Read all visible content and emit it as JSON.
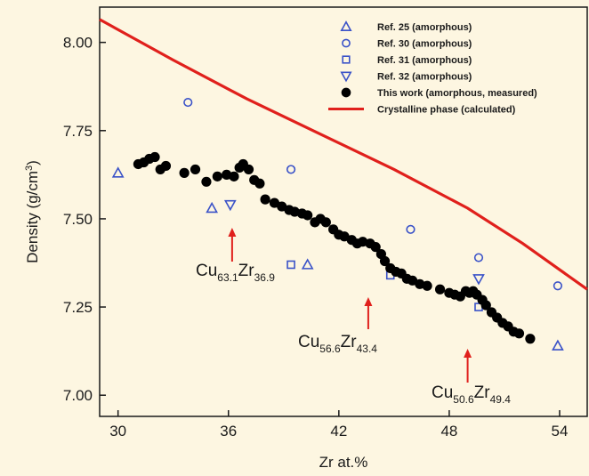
{
  "chart_data": {
    "type": "scatter",
    "xlabel": "Zr at.%",
    "ylabel": "Density (g/cm³)",
    "ylabel_base": "Density (g/cm",
    "ylabel_sup": "3",
    "ylabel_close": ")",
    "xlim": [
      29,
      55.5
    ],
    "ylim": [
      6.94,
      8.1
    ],
    "xticks": [
      30,
      36,
      42,
      48,
      54
    ],
    "xtick_labels": [
      "30",
      "36",
      "42",
      "48",
      "54"
    ],
    "yticks": [
      7.0,
      7.25,
      7.5,
      7.75,
      8.0
    ],
    "ytick_labels": [
      "7.00",
      "7.25",
      "7.50",
      "7.75",
      "8.00"
    ],
    "grid": false,
    "legend_position": "top-right",
    "colors": {
      "blue": "#3a52c8",
      "black": "#000000",
      "red": "#e0201c"
    },
    "series": [
      {
        "name": "Ref. 25 (amorphous)",
        "marker": "triangle-up",
        "color": "#3a52c8",
        "points": [
          [
            30.0,
            7.63
          ],
          [
            35.1,
            7.53
          ],
          [
            40.3,
            7.37
          ],
          [
            53.9,
            7.14
          ]
        ]
      },
      {
        "name": "Ref. 30 (amorphous)",
        "marker": "circle-open",
        "color": "#3a52c8",
        "points": [
          [
            33.8,
            7.83
          ],
          [
            39.4,
            7.64
          ],
          [
            45.9,
            7.47
          ],
          [
            49.6,
            7.39
          ],
          [
            53.9,
            7.31
          ]
        ]
      },
      {
        "name": "Ref. 31 (amorphous)",
        "marker": "square-open",
        "color": "#3a52c8",
        "points": [
          [
            39.4,
            7.37
          ],
          [
            44.8,
            7.34
          ],
          [
            49.6,
            7.25
          ]
        ]
      },
      {
        "name": "Ref. 32 (amorphous)",
        "marker": "triangle-down",
        "color": "#3a52c8",
        "points": [
          [
            36.1,
            7.54
          ],
          [
            49.6,
            7.33
          ]
        ]
      },
      {
        "name": "This work (amorphous, measured)",
        "marker": "circle-filled",
        "color": "#000000",
        "points": [
          [
            31.1,
            7.655
          ],
          [
            31.4,
            7.66
          ],
          [
            31.7,
            7.67
          ],
          [
            32.0,
            7.675
          ],
          [
            32.3,
            7.64
          ],
          [
            32.6,
            7.65
          ],
          [
            33.6,
            7.63
          ],
          [
            34.2,
            7.64
          ],
          [
            34.8,
            7.605
          ],
          [
            35.4,
            7.62
          ],
          [
            35.9,
            7.625
          ],
          [
            36.3,
            7.62
          ],
          [
            36.6,
            7.645
          ],
          [
            36.8,
            7.655
          ],
          [
            37.1,
            7.64
          ],
          [
            37.4,
            7.61
          ],
          [
            37.7,
            7.6
          ],
          [
            38.0,
            7.555
          ],
          [
            38.5,
            7.545
          ],
          [
            38.9,
            7.535
          ],
          [
            39.3,
            7.525
          ],
          [
            39.6,
            7.52
          ],
          [
            40.0,
            7.515
          ],
          [
            40.3,
            7.51
          ],
          [
            40.7,
            7.49
          ],
          [
            41.0,
            7.5
          ],
          [
            41.3,
            7.49
          ],
          [
            41.7,
            7.47
          ],
          [
            42.0,
            7.455
          ],
          [
            42.3,
            7.45
          ],
          [
            42.7,
            7.44
          ],
          [
            43.0,
            7.43
          ],
          [
            43.3,
            7.435
          ],
          [
            43.7,
            7.43
          ],
          [
            44.0,
            7.42
          ],
          [
            44.3,
            7.4
          ],
          [
            44.5,
            7.38
          ],
          [
            44.8,
            7.36
          ],
          [
            45.1,
            7.35
          ],
          [
            45.4,
            7.345
          ],
          [
            45.7,
            7.33
          ],
          [
            46.0,
            7.325
          ],
          [
            46.4,
            7.315
          ],
          [
            46.8,
            7.31
          ],
          [
            47.5,
            7.3
          ],
          [
            48.0,
            7.29
          ],
          [
            48.3,
            7.285
          ],
          [
            48.6,
            7.28
          ],
          [
            48.9,
            7.295
          ],
          [
            49.1,
            7.29
          ],
          [
            49.3,
            7.295
          ],
          [
            49.5,
            7.285
          ],
          [
            49.8,
            7.27
          ],
          [
            50.0,
            7.255
          ],
          [
            50.3,
            7.235
          ],
          [
            50.6,
            7.22
          ],
          [
            50.9,
            7.205
          ],
          [
            51.2,
            7.195
          ],
          [
            51.5,
            7.18
          ],
          [
            51.8,
            7.175
          ],
          [
            52.4,
            7.16
          ]
        ]
      },
      {
        "name": "Crystalline phase (calculated)",
        "marker": "line",
        "color": "#e0201c",
        "line": [
          [
            29.0,
            8.065
          ],
          [
            33.0,
            7.95
          ],
          [
            37.0,
            7.84
          ],
          [
            41.0,
            7.74
          ],
          [
            45.0,
            7.64
          ],
          [
            49.0,
            7.53
          ],
          [
            52.0,
            7.43
          ],
          [
            55.5,
            7.3
          ]
        ]
      }
    ],
    "annotations": [
      {
        "base": "Cu",
        "sub1": "63.1",
        "mid": "Zr",
        "sub2": "36.9",
        "arrow_x": 36.2
      },
      {
        "base": "Cu",
        "sub1": "56.6",
        "mid": "Zr",
        "sub2": "43.4",
        "arrow_x": 43.6
      },
      {
        "base": "Cu",
        "sub1": "50.6",
        "mid": "Zr",
        "sub2": "49.4",
        "arrow_x": 49.0
      }
    ]
  }
}
